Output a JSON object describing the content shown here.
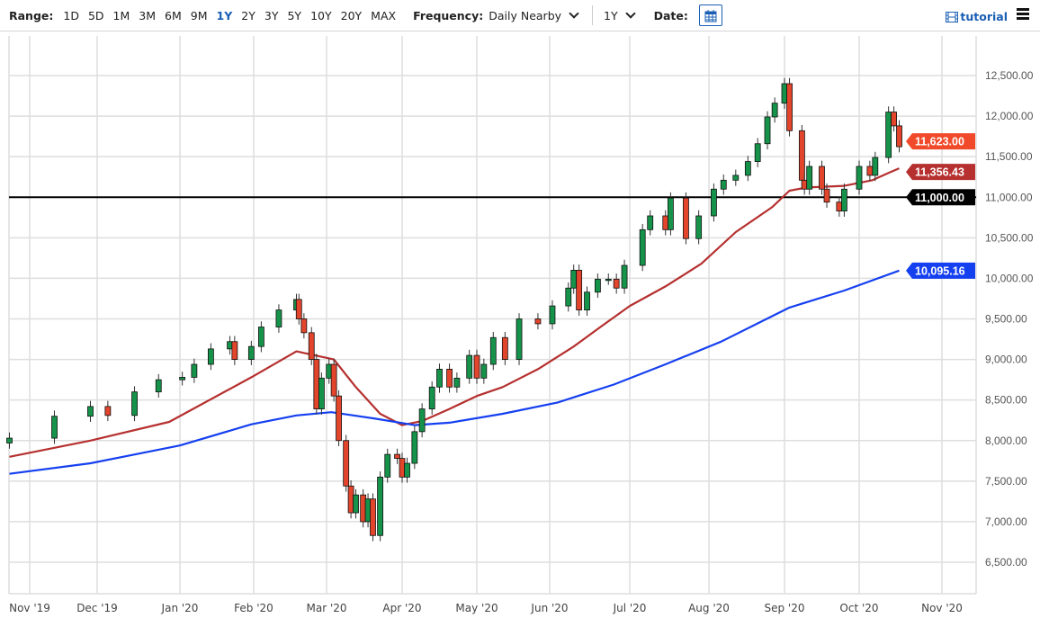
{
  "toolbar": {
    "range_label": "Range:",
    "ranges": [
      "1D",
      "5D",
      "1M",
      "3M",
      "6M",
      "9M",
      "1Y",
      "2Y",
      "3Y",
      "5Y",
      "10Y",
      "20Y",
      "MAX"
    ],
    "active_range": "1Y",
    "frequency_label": "Frequency:",
    "frequency_value": "Daily Nearby",
    "period_value": "1Y",
    "date_label": "Date:",
    "tutorial_label": "tutorial",
    "icons": {
      "calendar": "calendar-icon",
      "tutorial": "film-icon",
      "menu": "hamburger-menu-icon"
    },
    "accent": "#1a5fb4"
  },
  "chart_data": {
    "type": "candlestick",
    "title": "",
    "xlabel": "",
    "ylabel": "",
    "ylim": [
      6500,
      12500
    ],
    "y_ticks": [
      "6,500.00",
      "7,000.00",
      "7,500.00",
      "8,000.00",
      "8,500.00",
      "9,000.00",
      "9,500.00",
      "10,000.00",
      "10,500.00",
      "11,000.00",
      "11,500.00",
      "12,000.00",
      "12,500.00"
    ],
    "x_ticks": [
      "Nov '19",
      "Dec '19",
      "Jan '20",
      "Feb '20",
      "Mar '20",
      "Apr '20",
      "May '20",
      "Jun '20",
      "Jul '20",
      "Aug '20",
      "Sep '20",
      "Oct '20",
      "Nov '20"
    ],
    "grid": true,
    "colors": {
      "up": "#16934a",
      "down": "#e2452c",
      "ma_short": "#b5302f",
      "ma_long": "#1540f0",
      "level": "#000000",
      "last": "#f04a2a"
    },
    "closes": [
      [
        "2019-10-23",
        8030
      ],
      [
        "2019-11-12",
        8300
      ],
      [
        "2019-11-28",
        8420
      ],
      [
        "2019-12-05",
        8310
      ],
      [
        "2019-12-15",
        8600
      ],
      [
        "2019-12-24",
        8750
      ],
      [
        "2020-01-02",
        8780
      ],
      [
        "2020-01-07",
        8940
      ],
      [
        "2020-01-14",
        9130
      ],
      [
        "2020-01-22",
        9220
      ],
      [
        "2020-01-24",
        9000
      ],
      [
        "2020-01-31",
        9160
      ],
      [
        "2020-02-04",
        9400
      ],
      [
        "2020-02-11",
        9610
      ],
      [
        "2020-02-18",
        9740
      ],
      [
        "2020-02-19",
        9500
      ],
      [
        "2020-02-21",
        9330
      ],
      [
        "2020-02-24",
        9000
      ],
      [
        "2020-02-26",
        8390
      ],
      [
        "2020-02-28",
        8770
      ],
      [
        "2020-03-02",
        8940
      ],
      [
        "2020-03-04",
        8550
      ],
      [
        "2020-03-06",
        8000
      ],
      [
        "2020-03-09",
        7440
      ],
      [
        "2020-03-11",
        7110
      ],
      [
        "2020-03-13",
        7330
      ],
      [
        "2020-03-16",
        7000
      ],
      [
        "2020-03-18",
        7280
      ],
      [
        "2020-03-20",
        6830
      ],
      [
        "2020-03-23",
        7550
      ],
      [
        "2020-03-26",
        7830
      ],
      [
        "2020-03-30",
        7780
      ],
      [
        "2020-04-01",
        7550
      ],
      [
        "2020-04-03",
        7720
      ],
      [
        "2020-04-06",
        8110
      ],
      [
        "2020-04-09",
        8390
      ],
      [
        "2020-04-13",
        8660
      ],
      [
        "2020-04-16",
        8880
      ],
      [
        "2020-04-20",
        8660
      ],
      [
        "2020-04-23",
        8770
      ],
      [
        "2020-04-28",
        9050
      ],
      [
        "2020-05-01",
        8770
      ],
      [
        "2020-05-04",
        8940
      ],
      [
        "2020-05-08",
        9270
      ],
      [
        "2020-05-13",
        9000
      ],
      [
        "2020-05-19",
        9500
      ],
      [
        "2020-05-27",
        9440
      ],
      [
        "2020-06-02",
        9660
      ],
      [
        "2020-06-08",
        9880
      ],
      [
        "2020-06-10",
        10100
      ],
      [
        "2020-06-12",
        9610
      ],
      [
        "2020-06-15",
        9830
      ],
      [
        "2020-06-19",
        9990
      ],
      [
        "2020-06-23",
        9990
      ],
      [
        "2020-06-26",
        9880
      ],
      [
        "2020-06-29",
        10160
      ],
      [
        "2020-07-06",
        10600
      ],
      [
        "2020-07-09",
        10770
      ],
      [
        "2020-07-15",
        10600
      ],
      [
        "2020-07-17",
        10990
      ],
      [
        "2020-07-23",
        10490
      ],
      [
        "2020-07-28",
        10770
      ],
      [
        "2020-08-03",
        11100
      ],
      [
        "2020-08-07",
        11210
      ],
      [
        "2020-08-12",
        11270
      ],
      [
        "2020-08-17",
        11440
      ],
      [
        "2020-08-21",
        11660
      ],
      [
        "2020-08-25",
        11990
      ],
      [
        "2020-08-28",
        12160
      ],
      [
        "2020-09-01",
        12400
      ],
      [
        "2020-09-03",
        11820
      ],
      [
        "2020-09-08",
        11210
      ],
      [
        "2020-09-09",
        11100
      ],
      [
        "2020-09-11",
        11380
      ],
      [
        "2020-09-16",
        11100
      ],
      [
        "2020-09-18",
        10940
      ],
      [
        "2020-09-23",
        10830
      ],
      [
        "2020-09-25",
        11100
      ],
      [
        "2020-10-01",
        11380
      ],
      [
        "2020-10-05",
        11270
      ],
      [
        "2020-10-07",
        11490
      ],
      [
        "2020-10-12",
        12050
      ],
      [
        "2020-10-14",
        11880
      ],
      [
        "2020-10-16",
        11623
      ]
    ],
    "ma_short": [
      [
        "2019-10-23",
        7800
      ],
      [
        "2019-11-28",
        8000
      ],
      [
        "2019-12-28",
        8230
      ],
      [
        "2020-01-31",
        8780
      ],
      [
        "2020-02-18",
        9100
      ],
      [
        "2020-03-04",
        9000
      ],
      [
        "2020-03-13",
        8660
      ],
      [
        "2020-03-23",
        8330
      ],
      [
        "2020-04-01",
        8190
      ],
      [
        "2020-04-09",
        8240
      ],
      [
        "2020-04-20",
        8390
      ],
      [
        "2020-05-01",
        8550
      ],
      [
        "2020-05-12",
        8660
      ],
      [
        "2020-05-27",
        8880
      ],
      [
        "2020-06-10",
        9160
      ],
      [
        "2020-06-20",
        9400
      ],
      [
        "2020-07-01",
        9660
      ],
      [
        "2020-07-15",
        9900
      ],
      [
        "2020-07-29",
        10180
      ],
      [
        "2020-08-12",
        10570
      ],
      [
        "2020-08-27",
        10880
      ],
      [
        "2020-09-03",
        11080
      ],
      [
        "2020-09-10",
        11120
      ],
      [
        "2020-09-25",
        11140
      ],
      [
        "2020-10-06",
        11210
      ],
      [
        "2020-10-12",
        11300
      ],
      [
        "2020-10-16",
        11356.43
      ]
    ],
    "ma_long": [
      [
        "2019-10-23",
        7590
      ],
      [
        "2019-11-28",
        7720
      ],
      [
        "2020-01-01",
        7940
      ],
      [
        "2020-01-31",
        8200
      ],
      [
        "2020-02-18",
        8310
      ],
      [
        "2020-03-03",
        8350
      ],
      [
        "2020-03-21",
        8270
      ],
      [
        "2020-04-06",
        8190
      ],
      [
        "2020-04-20",
        8220
      ],
      [
        "2020-05-12",
        8330
      ],
      [
        "2020-06-04",
        8470
      ],
      [
        "2020-06-25",
        8690
      ],
      [
        "2020-07-15",
        8940
      ],
      [
        "2020-08-06",
        9220
      ],
      [
        "2020-08-28",
        9550
      ],
      [
        "2020-09-03",
        9640
      ],
      [
        "2020-09-25",
        9850
      ],
      [
        "2020-10-16",
        10095.16
      ]
    ],
    "level": 11000,
    "price_labels": [
      {
        "value": "11,623.00",
        "color": "#f04a2a"
      },
      {
        "value": "11,356.43",
        "color": "#b5302f"
      },
      {
        "value": "11,000.00",
        "color": "#000000"
      },
      {
        "value": "10,095.16",
        "color": "#1540f0"
      }
    ],
    "price_label_values": [
      11623,
      11356.43,
      11000,
      10095.16
    ]
  }
}
